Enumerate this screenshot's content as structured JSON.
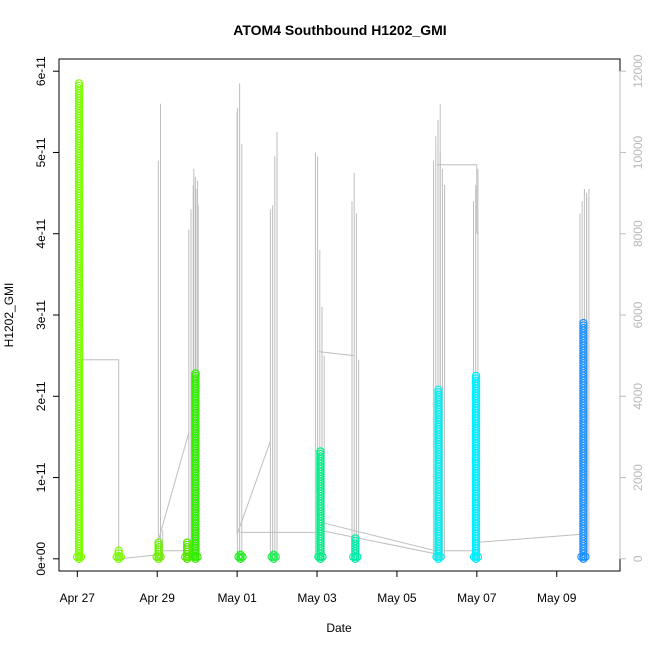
{
  "chart_data": {
    "type": "scatter",
    "title": "ATOM4 Southbound H1202_GMI",
    "xlabel": "Date",
    "ylabel": "H1202_GMI",
    "xlim": [
      "2016-04-26 13:00",
      "2016-05-10 14:00"
    ],
    "ylim": [
      -1.5e-12,
      6.15e-11
    ],
    "y2lim": [
      -300,
      12300
    ],
    "x_ticks": [
      {
        "t": "2016-04-27 00:00",
        "label": "Apr 27"
      },
      {
        "t": "2016-04-29 00:00",
        "label": "Apr 29"
      },
      {
        "t": "2016-05-01 00:00",
        "label": "May 01"
      },
      {
        "t": "2016-05-03 00:00",
        "label": "May 03"
      },
      {
        "t": "2016-05-05 00:00",
        "label": "May 05"
      },
      {
        "t": "2016-05-07 00:00",
        "label": "May 07"
      },
      {
        "t": "2016-05-09 00:00",
        "label": "May 09"
      }
    ],
    "y_ticks": [
      {
        "v": 0,
        "label": "0e+00"
      },
      {
        "v": 1e-11,
        "label": "1e-11"
      },
      {
        "v": 2e-11,
        "label": "2e-11"
      },
      {
        "v": 3e-11,
        "label": "3e-11"
      },
      {
        "v": 4e-11,
        "label": "4e-11"
      },
      {
        "v": 5e-11,
        "label": "5e-11"
      },
      {
        "v": 6e-11,
        "label": "6e-11"
      }
    ],
    "y2_ticks": [
      {
        "v": 0,
        "label": "0"
      },
      {
        "v": 2000,
        "label": "2000"
      },
      {
        "v": 4000,
        "label": "4000"
      },
      {
        "v": 6000,
        "label": "6000"
      },
      {
        "v": 8000,
        "label": "8000"
      },
      {
        "v": 10000,
        "label": "10000"
      },
      {
        "v": 12000,
        "label": "12000"
      }
    ],
    "y2_color": "#bebebe",
    "point_clusters": [
      {
        "t": "2016-04-27 01:00",
        "y_min": 0,
        "y_max": 5.85e-11,
        "color": "#7cfc00"
      },
      {
        "t": "2016-04-28 00:50",
        "y_min": 0,
        "y_max": 1e-12,
        "color": "#7cfc00"
      },
      {
        "t": "2016-04-29 00:50",
        "y_min": 0,
        "y_max": 2e-12,
        "color": "#6ef000"
      },
      {
        "t": "2016-04-29 18:00",
        "y_min": 0,
        "y_max": 2e-12,
        "color": "#55e800"
      },
      {
        "t": "2016-04-29 23:00",
        "y_min": 0,
        "y_max": 2.28e-11,
        "color": "#33ee00"
      },
      {
        "t": "2016-05-01 02:00",
        "y_min": 0,
        "y_max": 5e-13,
        "color": "#22ee22"
      },
      {
        "t": "2016-05-01 22:00",
        "y_min": 0,
        "y_max": 5e-13,
        "color": "#22ee55"
      },
      {
        "t": "2016-05-03 02:00",
        "y_min": 0,
        "y_max": 1.32e-11,
        "color": "#00ee88"
      },
      {
        "t": "2016-05-03 23:00",
        "y_min": 0,
        "y_max": 2.5e-12,
        "color": "#00eeaa"
      },
      {
        "t": "2016-05-06 01:00",
        "y_min": 0,
        "y_max": 2.08e-11,
        "color": "#00f0f0"
      },
      {
        "t": "2016-05-06 23:30",
        "y_min": 0,
        "y_max": 2.25e-11,
        "color": "#00eeff"
      },
      {
        "t": "2016-05-09 16:00",
        "y_min": 0,
        "y_max": 2.9e-11,
        "color": "#1e90ff"
      }
    ],
    "secondary_spikes": [
      {
        "t": "2016-04-27 01:00",
        "values": [
          200,
          4900
        ]
      },
      {
        "t": "2016-04-29 00:40",
        "values": [
          9800,
          11200,
          700
        ]
      },
      {
        "t": "2016-04-29 19:00",
        "values": [
          8100,
          8600,
          9200,
          9400,
          9300
        ]
      },
      {
        "t": "2016-04-29 22:00",
        "values": [
          9600,
          9100,
          8700
        ]
      },
      {
        "t": "2016-05-01 00:10",
        "values": [
          11100,
          11700,
          10200
        ]
      },
      {
        "t": "2016-05-01 20:00",
        "values": [
          8600,
          8700,
          9900,
          10500
        ]
      },
      {
        "t": "2016-05-02 23:00",
        "values": [
          10000,
          9900,
          7600,
          6200,
          5000
        ]
      },
      {
        "t": "2016-05-03 21:00",
        "values": [
          8800,
          9500,
          8500,
          4900
        ]
      },
      {
        "t": "2016-05-05 22:00",
        "values": [
          9800,
          10400,
          10800,
          11200
        ]
      },
      {
        "t": "2016-05-06 02:00",
        "values": [
          10000,
          9600,
          9200
        ]
      },
      {
        "t": "2016-05-06 22:00",
        "values": [
          8800,
          9200,
          9600
        ]
      },
      {
        "t": "2016-05-09 14:00",
        "values": [
          8500,
          8800,
          9100,
          9000
        ]
      },
      {
        "t": "2016-05-09 18:00",
        "values": [
          8900,
          9100
        ]
      }
    ],
    "secondary_connectors": [
      [
        [
          "2016-04-27 01:00",
          4900
        ],
        [
          "2016-04-28 00:50",
          4900
        ],
        [
          "2016-04-28 00:50",
          0
        ]
      ],
      [
        [
          "2016-04-28 00:50",
          0
        ],
        [
          "2016-04-29 01:00",
          100
        ]
      ],
      [
        [
          "2016-04-29 01:00",
          500
        ],
        [
          "2016-04-29 19:00",
          3100
        ]
      ],
      [
        [
          "2016-04-29 01:00",
          200
        ],
        [
          "2016-04-29 19:00",
          200
        ]
      ],
      [
        [
          "2016-05-01 00:00",
          600
        ],
        [
          "2016-05-01 20:00",
          2900
        ]
      ],
      [
        [
          "2016-05-01 00:00",
          600
        ],
        [
          "2016-05-01 00:00",
          11000
        ]
      ],
      [
        [
          "2016-05-01 02:00",
          650
        ],
        [
          "2016-05-03 01:00",
          650
        ]
      ],
      [
        [
          "2016-05-03 01:00",
          5100
        ],
        [
          "2016-05-03 22:00",
          5000
        ]
      ],
      [
        [
          "2016-05-03 02:00",
          900
        ],
        [
          "2016-05-05 23:00",
          200
        ]
      ],
      [
        [
          "2016-05-03 02:00",
          700
        ],
        [
          "2016-05-06 02:00",
          100
        ]
      ],
      [
        [
          "2016-05-06 00:00",
          9700
        ],
        [
          "2016-05-07 00:00",
          9700
        ],
        [
          "2016-05-07 00:00",
          8000
        ]
      ],
      [
        [
          "2016-05-06 22:00",
          400
        ],
        [
          "2016-05-09 14:00",
          600
        ]
      ],
      [
        [
          "2016-05-06 04:00",
          200
        ],
        [
          "2016-05-06 23:00",
          200
        ]
      ]
    ],
    "grid": false,
    "legend": "none"
  }
}
